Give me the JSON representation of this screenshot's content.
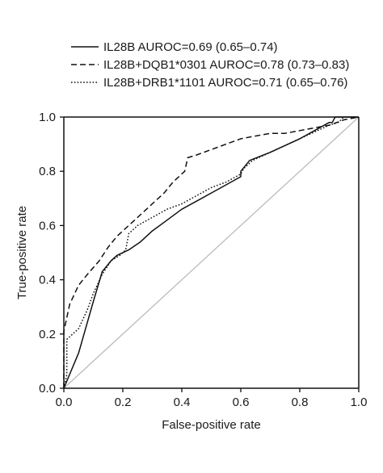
{
  "chart_data": {
    "type": "line",
    "xlabel": "False-positive rate",
    "ylabel": "True-positive rate",
    "xlim": [
      0,
      1
    ],
    "ylim": [
      0,
      1
    ],
    "xticks": [
      "0.0",
      "0.2",
      "0.4",
      "0.6",
      "0.8",
      "1.0"
    ],
    "yticks": [
      "0.0",
      "0.2",
      "0.4",
      "0.6",
      "0.8",
      "1.0"
    ],
    "grid": false,
    "legend_position": "top",
    "reference_line": {
      "x": [
        0,
        1
      ],
      "y": [
        0,
        1
      ],
      "color": "#bbbbbb"
    },
    "series": [
      {
        "name": "IL28B AUROC=0.69 (0.65–0.74)",
        "style": "solid",
        "x": [
          0.0,
          0.05,
          0.1,
          0.13,
          0.16,
          0.18,
          0.22,
          0.26,
          0.3,
          0.35,
          0.4,
          0.45,
          0.5,
          0.55,
          0.6,
          0.6,
          0.63,
          0.7,
          0.8,
          0.9,
          0.91,
          0.92,
          0.95,
          0.96,
          1.0
        ],
        "y": [
          0.0,
          0.13,
          0.32,
          0.43,
          0.47,
          0.49,
          0.51,
          0.54,
          0.58,
          0.62,
          0.66,
          0.69,
          0.72,
          0.75,
          0.78,
          0.8,
          0.84,
          0.87,
          0.92,
          0.98,
          0.98,
          1.0,
          1.0,
          1.0,
          1.0
        ]
      },
      {
        "name": "IL28B+DQB1*0301 AUROC=0.78 (0.73–0.83)",
        "style": "dashed",
        "x": [
          0.0,
          0.0,
          0.02,
          0.05,
          0.08,
          0.12,
          0.15,
          0.18,
          0.22,
          0.26,
          0.3,
          0.34,
          0.37,
          0.41,
          0.42,
          0.45,
          0.5,
          0.55,
          0.6,
          0.65,
          0.7,
          0.75,
          0.8,
          0.85,
          0.9,
          0.95,
          1.0
        ],
        "y": [
          0.0,
          0.21,
          0.31,
          0.38,
          0.42,
          0.47,
          0.52,
          0.56,
          0.6,
          0.64,
          0.68,
          0.72,
          0.76,
          0.8,
          0.85,
          0.86,
          0.88,
          0.9,
          0.92,
          0.93,
          0.94,
          0.94,
          0.95,
          0.96,
          0.97,
          0.99,
          1.0
        ]
      },
      {
        "name": "IL28B+DRB1*1101 AUROC=0.71 (0.65–0.76)",
        "style": "dotted",
        "x": [
          0.0,
          0.01,
          0.01,
          0.03,
          0.05,
          0.08,
          0.1,
          0.13,
          0.16,
          0.19,
          0.21,
          0.22,
          0.25,
          0.3,
          0.35,
          0.4,
          0.45,
          0.5,
          0.55,
          0.6,
          0.61,
          0.64,
          0.7,
          0.8,
          0.9,
          0.93,
          0.95,
          1.0
        ],
        "y": [
          0.0,
          0.05,
          0.18,
          0.2,
          0.22,
          0.29,
          0.35,
          0.42,
          0.47,
          0.49,
          0.51,
          0.57,
          0.6,
          0.63,
          0.66,
          0.68,
          0.71,
          0.74,
          0.76,
          0.79,
          0.81,
          0.84,
          0.87,
          0.92,
          0.97,
          0.98,
          1.0,
          1.0
        ]
      }
    ]
  }
}
